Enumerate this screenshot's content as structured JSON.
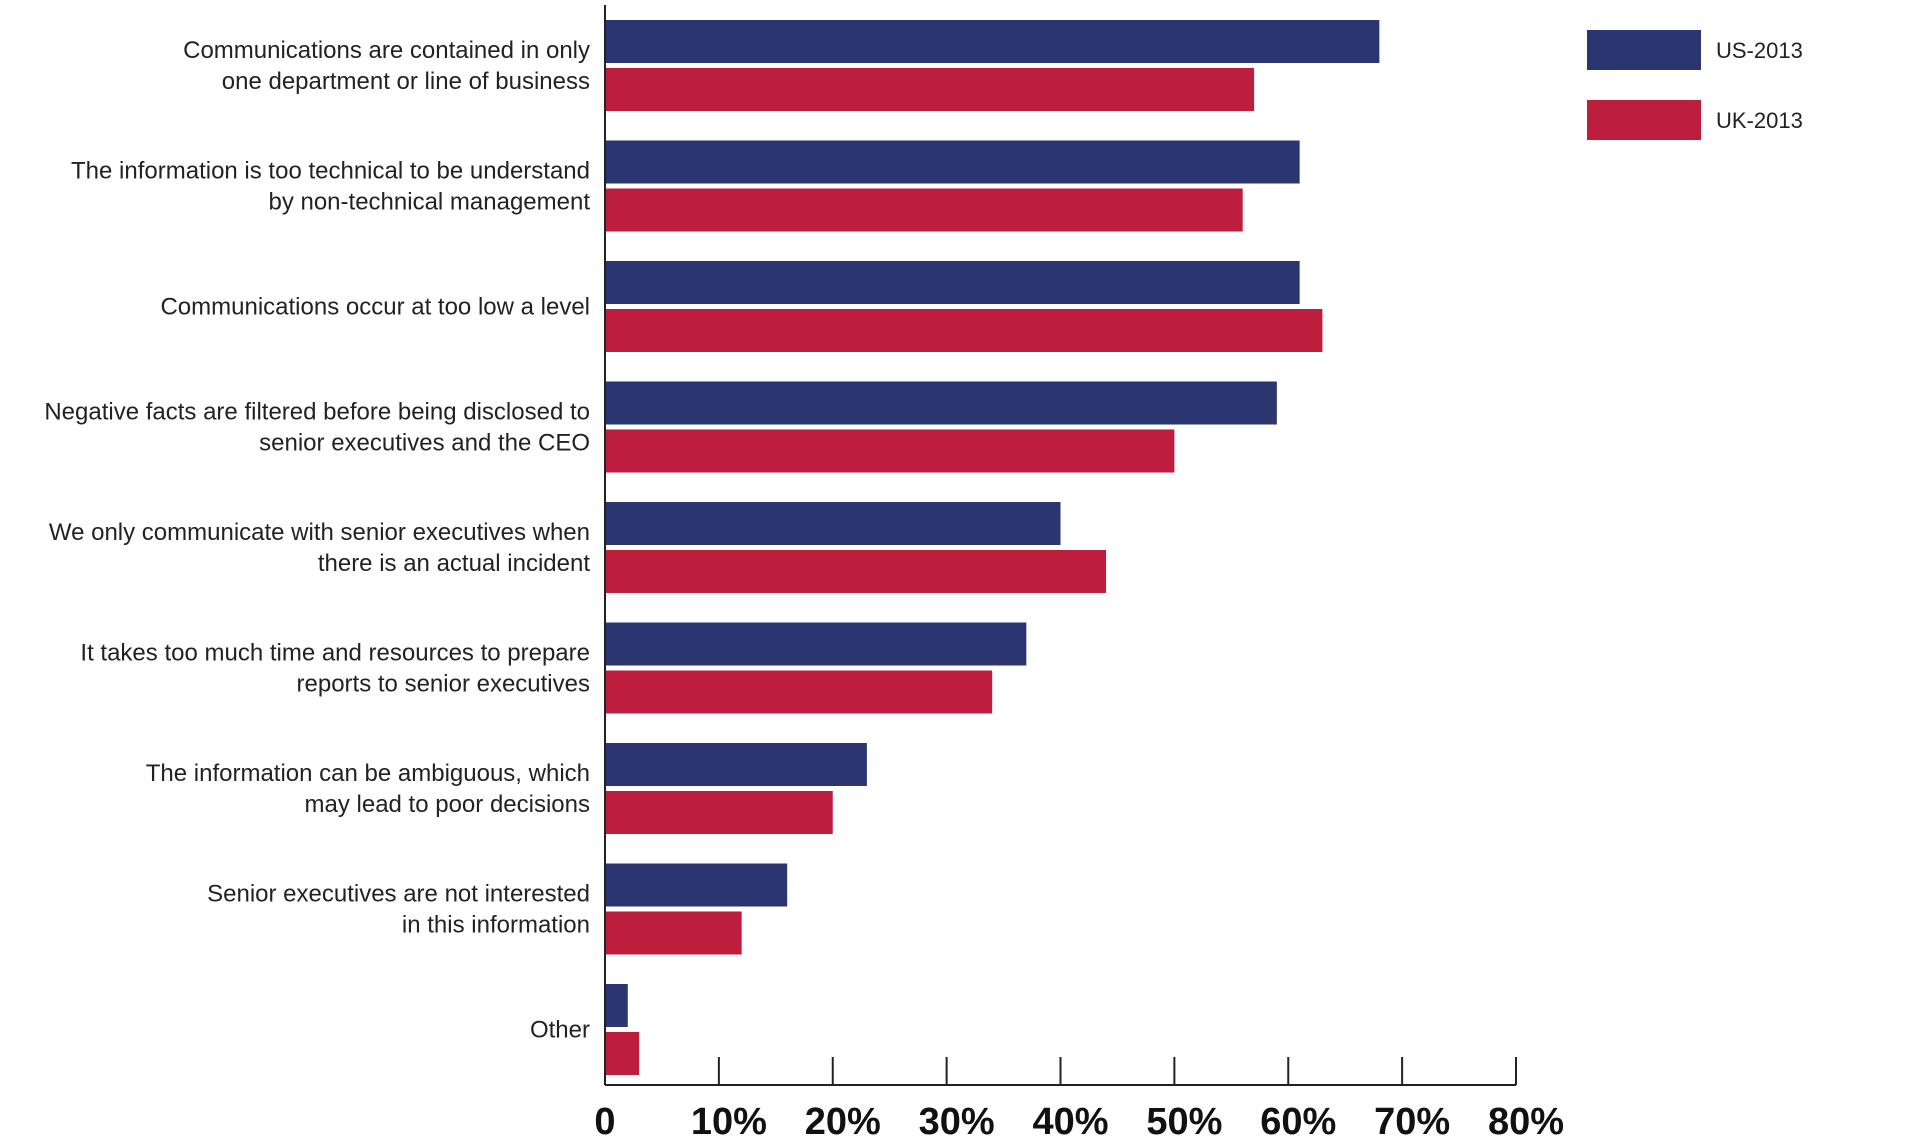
{
  "chart_data": {
    "type": "bar",
    "orientation": "horizontal",
    "categories": [
      [
        "Communications are contained in only",
        "one department or line of business"
      ],
      [
        "The information is too technical to be understand",
        "by non-technical management"
      ],
      [
        "Communications occur at too low a level"
      ],
      [
        "Negative facts are filtered before being disclosed to",
        "senior executives and the CEO"
      ],
      [
        "We only communicate with senior executives when",
        "there is an actual incident"
      ],
      [
        "It takes too much time and resources to prepare",
        "reports to senior executives"
      ],
      [
        "The information can be ambiguous, which",
        "may lead to poor decisions"
      ],
      [
        "Senior executives are not interested",
        "in this information"
      ],
      [
        "Other"
      ]
    ],
    "series": [
      {
        "name": "US-2013",
        "color": "#2b3670",
        "values": [
          68,
          61,
          61,
          59,
          40,
          37,
          23,
          16,
          2
        ]
      },
      {
        "name": "UK-2013",
        "color": "#be1e3d",
        "values": [
          57,
          56,
          63,
          50,
          44,
          34,
          20,
          12,
          3
        ]
      }
    ],
    "xlim": [
      0,
      80
    ],
    "xticks": [
      0,
      10,
      20,
      30,
      40,
      50,
      60,
      70,
      80
    ],
    "xtick_labels": [
      "0",
      "10%",
      "20%",
      "30%",
      "40%",
      "50%",
      "60%",
      "70%",
      "80%"
    ],
    "grid": false,
    "legend_position": "top-right",
    "title": "",
    "xlabel": "",
    "ylabel": ""
  }
}
